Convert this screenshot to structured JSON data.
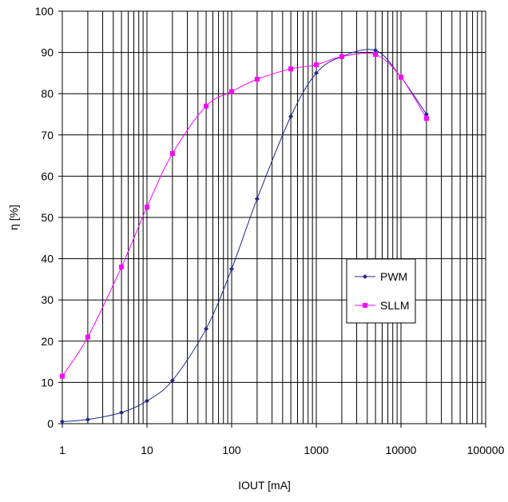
{
  "chart_data": {
    "type": "line",
    "title": "",
    "xlabel": "IOUT [mA]",
    "ylabel": "η [%]",
    "x_scale": "log",
    "xlim": [
      1,
      100000
    ],
    "ylim": [
      0,
      100
    ],
    "grid": true,
    "legend_position": "right-middle",
    "x_tick_labels": [
      "1",
      "10",
      "100",
      "1000",
      "10000",
      "100000"
    ],
    "y_tick_labels": [
      "0",
      "10",
      "20",
      "30",
      "40",
      "50",
      "60",
      "70",
      "80",
      "90",
      "100"
    ],
    "series": [
      {
        "name": "PWM",
        "color": "#1f2a8a",
        "marker": "diamond",
        "points": [
          [
            1,
            0.5
          ],
          [
            2,
            1
          ],
          [
            5,
            2.7
          ],
          [
            10,
            5.5
          ],
          [
            20,
            10.5
          ],
          [
            50,
            23
          ],
          [
            100,
            37.5
          ],
          [
            200,
            54.5
          ],
          [
            500,
            74.5
          ],
          [
            1000,
            85
          ],
          [
            2000,
            89
          ],
          [
            5000,
            90.5
          ],
          [
            10000,
            84
          ],
          [
            20000,
            75
          ]
        ]
      },
      {
        "name": "SLLM",
        "color": "#ff00ff",
        "marker": "square",
        "points": [
          [
            1,
            11.5
          ],
          [
            2,
            21
          ],
          [
            5,
            38
          ],
          [
            10,
            52.5
          ],
          [
            20,
            65.5
          ],
          [
            50,
            77
          ],
          [
            100,
            80.5
          ],
          [
            200,
            83.5
          ],
          [
            500,
            86
          ],
          [
            1000,
            87
          ],
          [
            2000,
            89
          ],
          [
            5000,
            89.5
          ],
          [
            10000,
            84
          ],
          [
            20000,
            74
          ]
        ]
      }
    ]
  }
}
